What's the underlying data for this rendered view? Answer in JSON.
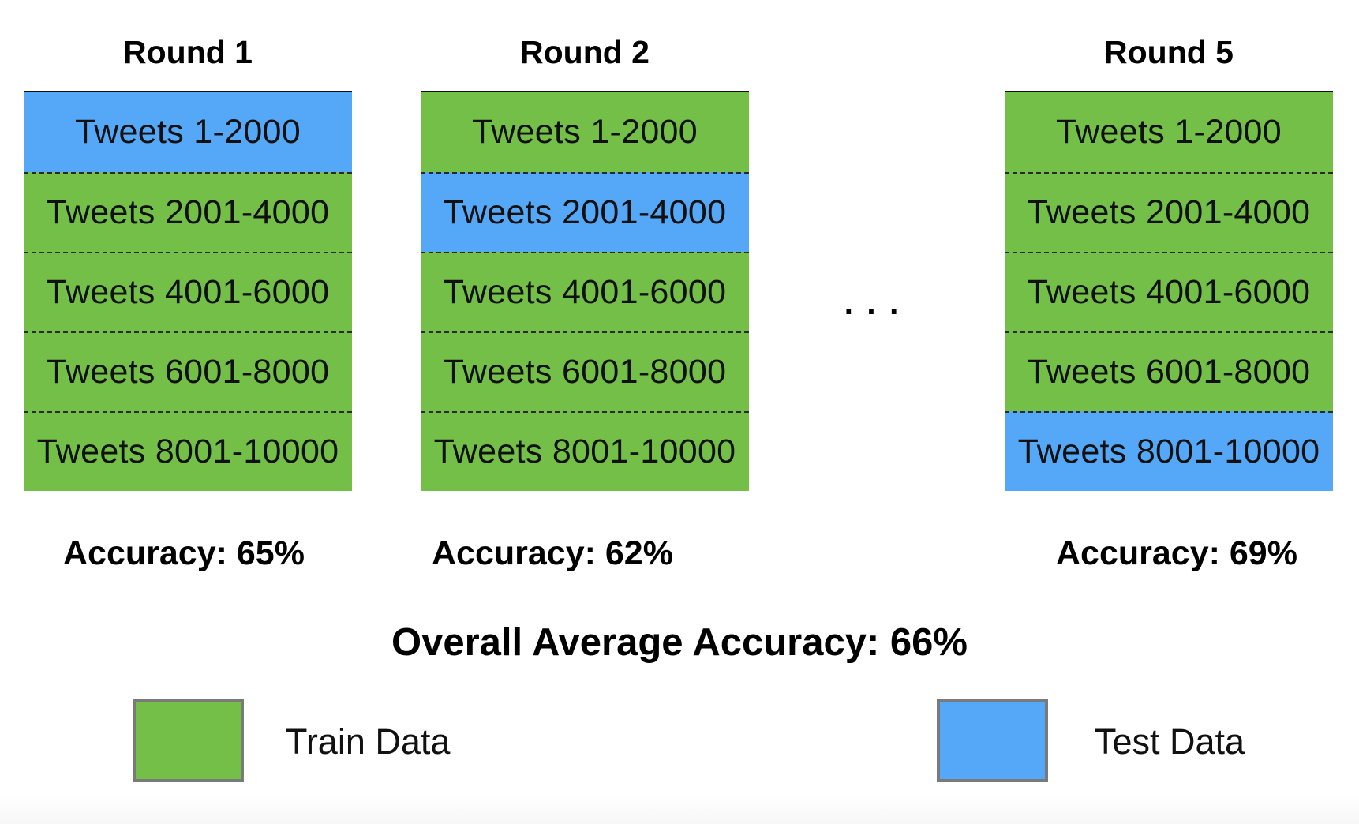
{
  "colors": {
    "train": "#74bf47",
    "test": "#55a8f8"
  },
  "rounds": [
    {
      "title": "Round 1",
      "accuracy": "Accuracy: 65%",
      "cells": [
        {
          "label": "Tweets 1-2000",
          "type": "test"
        },
        {
          "label": "Tweets 2001-4000",
          "type": "train"
        },
        {
          "label": "Tweets 4001-6000",
          "type": "train"
        },
        {
          "label": "Tweets 6001-8000",
          "type": "train"
        },
        {
          "label": "Tweets 8001-10000",
          "type": "train"
        }
      ]
    },
    {
      "title": "Round 2",
      "accuracy": "Accuracy: 62%",
      "cells": [
        {
          "label": "Tweets 1-2000",
          "type": "train"
        },
        {
          "label": "Tweets 2001-4000",
          "type": "test"
        },
        {
          "label": "Tweets 4001-6000",
          "type": "train"
        },
        {
          "label": "Tweets 6001-8000",
          "type": "train"
        },
        {
          "label": "Tweets 8001-10000",
          "type": "train"
        }
      ]
    },
    {
      "title": "Round 5",
      "accuracy": "Accuracy: 69%",
      "cells": [
        {
          "label": "Tweets 1-2000",
          "type": "train"
        },
        {
          "label": "Tweets 2001-4000",
          "type": "train"
        },
        {
          "label": "Tweets 4001-6000",
          "type": "train"
        },
        {
          "label": "Tweets 6001-8000",
          "type": "train"
        },
        {
          "label": "Tweets 8001-10000",
          "type": "test"
        }
      ]
    }
  ],
  "ellipsis": "...",
  "overall": "Overall Average Accuracy: 66%",
  "legend": {
    "train_label": "Train Data",
    "test_label": "Test Data"
  }
}
